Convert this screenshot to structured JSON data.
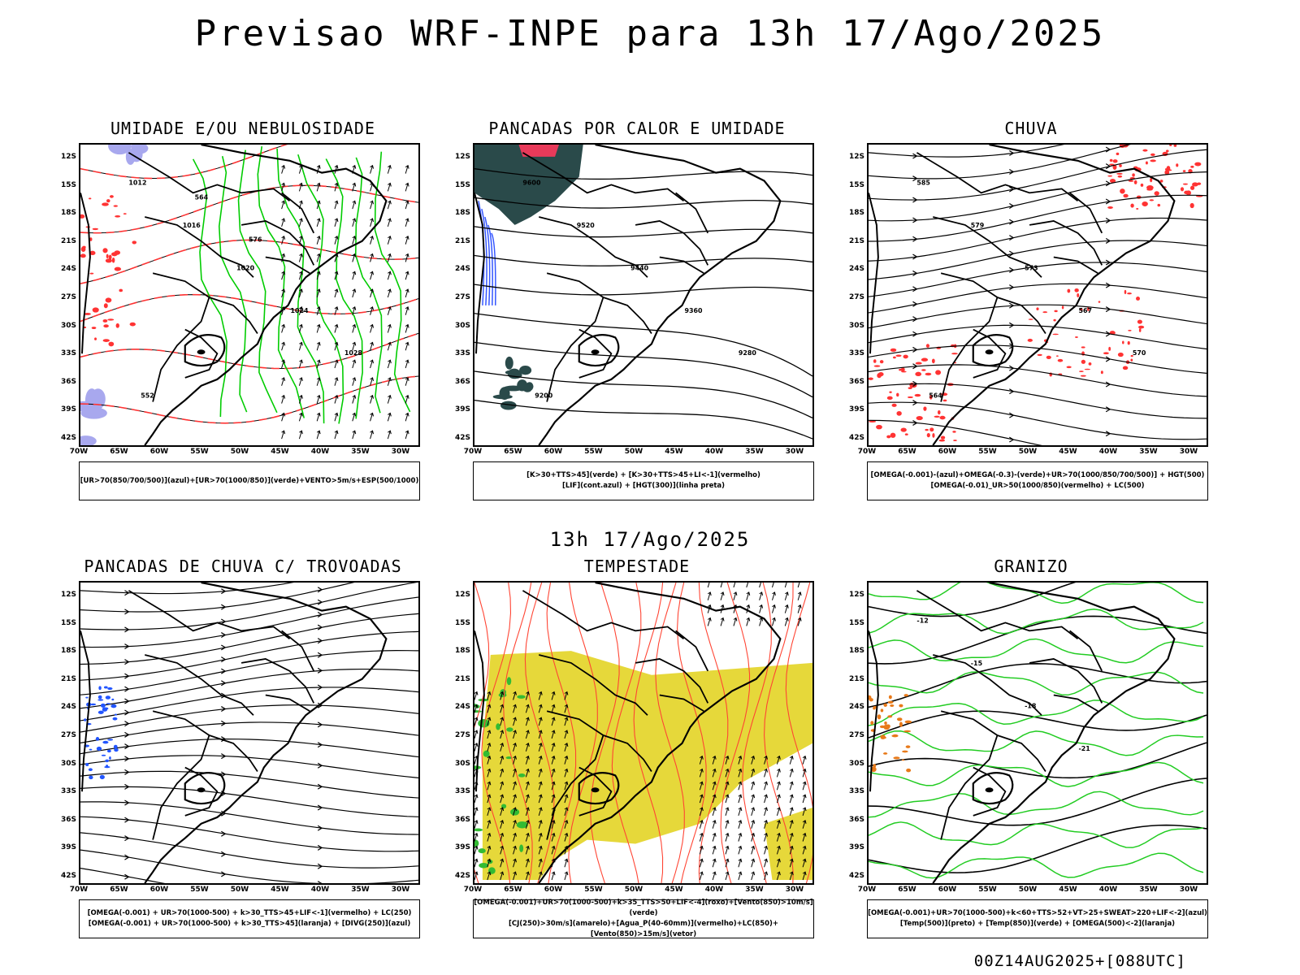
{
  "title": "Previsao WRF-INPE  para 13h 17/Ago/2025",
  "subtitle": "13h 17/Ago/2025",
  "run_info": "00Z14AUG2025+[088UTC]",
  "axes": {
    "lat_labels": [
      "12S",
      "15S",
      "18S",
      "21S",
      "24S",
      "27S",
      "30S",
      "33S",
      "36S",
      "39S",
      "42S"
    ],
    "lon_labels": [
      "70W",
      "65W",
      "60W",
      "55W",
      "50W",
      "45W",
      "40W",
      "35W",
      "30W"
    ]
  },
  "panels": [
    {
      "title": "UMIDADE E/OU NEBULOSIDADE",
      "legend": [
        "[UR>70(850/700/500)](azul)+[UR>70(1000/850)](verde)+VENTO>5m/s+ESP(500/1000)"
      ],
      "contour_labels": [
        "1012",
        "1016",
        "1020",
        "1024",
        "1028",
        "552",
        "564",
        "576"
      ]
    },
    {
      "title": "PANCADAS POR CALOR E UMIDADE",
      "legend": [
        "[K>30+TTS>45](verde) + [K>30+TTS>45+LI<-1](vermelho)",
        "[LIF](cont.azul) + [HGT(300)](linha preta)"
      ],
      "contour_labels": [
        "9600",
        "9520",
        "9440",
        "9360",
        "9280",
        "9200"
      ]
    },
    {
      "title": "CHUVA",
      "legend": [
        "[OMEGA(-0.001)-(azul)+OMEGA(-0.3)-(verde)+UR>70(1000/850/700/500)] + HGT(500)",
        "[OMEGA(-0.01)_UR>50(1000/850)(vermelho) + LC(500)"
      ],
      "contour_labels": [
        "585",
        "579",
        "573",
        "567",
        "570",
        "564"
      ]
    },
    {
      "title": "PANCADAS DE CHUVA C/ TROVOADAS",
      "legend": [
        "[OMEGA(-0.001) + UR>70(1000-500) + k>30_TTS>45+LIF<-1](vermelho) + LC(250)",
        "[OMEGA(-0.001) + UR>70(1000-500) + k>30_TTS>45](laranja) + [DIVG(250)](azul)"
      ],
      "contour_labels": []
    },
    {
      "title": "TEMPESTADE",
      "legend": [
        "[OMEGA(-0.001)+UR>70(1000-500)+k>35_TTS>50+LIF<-4](roxo)+[Vento(850)>10m/s](verde)",
        "[CJ(250)>30m/s](amarelo)+[Agua_P(40-60mm)](vermelho)+LC(850)+[Vento(850)>15m/s](vetor)"
      ],
      "contour_labels": []
    },
    {
      "title": "GRANIZO",
      "legend": [
        "[OMEGA(-0.001)+UR>70(1000-500)+k<60+TTS>52+VT>25+SWEAT>220+LIF<-2](azul)",
        "[Temp(500)](preto) + [Temp(850)](verde) + [OMEGA(500)<-2](laranja)"
      ],
      "contour_labels": [
        "-12",
        "-15",
        "-18",
        "-21"
      ]
    }
  ],
  "colors": {
    "humid_blue": "#a8a8ee",
    "humid_green": "#00cc00",
    "dashed_red": "#ff3333",
    "dark_teal": "#2a4a4a",
    "lif_blue": "#3355ff",
    "jet_yellow": "#e6d83a",
    "stream_red": "#ff4433",
    "granizo_green": "#22cc22",
    "orange": "#e87a1a"
  }
}
